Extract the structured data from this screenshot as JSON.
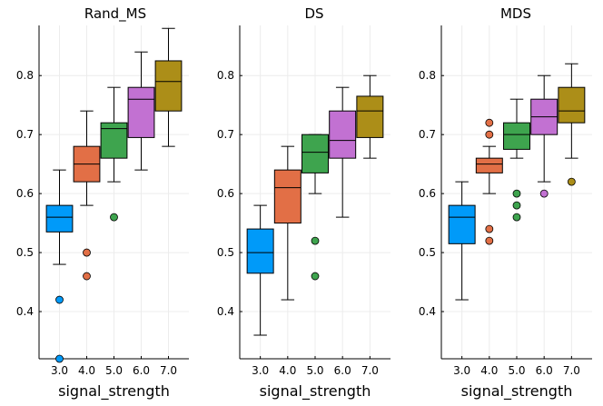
{
  "chart_data": [
    {
      "type": "boxplot",
      "title": "Rand_MS",
      "xlabel": "signal_strength",
      "ylabel": "",
      "ylim": [
        0.32,
        0.885
      ],
      "yticks": [
        "0.4",
        "0.5",
        "0.6",
        "0.7",
        "0.8"
      ],
      "grid": true,
      "categories": [
        "3.0",
        "4.0",
        "5.0",
        "6.0",
        "7.0"
      ],
      "boxes": [
        {
          "category": "3.0",
          "whisker_low": 0.48,
          "q1": 0.535,
          "median": 0.56,
          "q3": 0.58,
          "whisker_high": 0.64,
          "outliers": [
            0.42,
            0.32
          ]
        },
        {
          "category": "4.0",
          "whisker_low": 0.58,
          "q1": 0.62,
          "median": 0.65,
          "q3": 0.68,
          "whisker_high": 0.74,
          "outliers": [
            0.5,
            0.46
          ]
        },
        {
          "category": "5.0",
          "whisker_low": 0.62,
          "q1": 0.66,
          "median": 0.71,
          "q3": 0.72,
          "whisker_high": 0.78,
          "outliers": [
            0.56
          ]
        },
        {
          "category": "6.0",
          "whisker_low": 0.64,
          "q1": 0.695,
          "median": 0.76,
          "q3": 0.78,
          "whisker_high": 0.84,
          "outliers": []
        },
        {
          "category": "7.0",
          "whisker_low": 0.68,
          "q1": 0.74,
          "median": 0.79,
          "q3": 0.825,
          "whisker_high": 0.88,
          "outliers": []
        }
      ]
    },
    {
      "type": "boxplot",
      "title": "DS",
      "xlabel": "signal_strength",
      "ylabel": "",
      "ylim": [
        0.32,
        0.885
      ],
      "yticks": [
        "0.4",
        "0.5",
        "0.6",
        "0.7",
        "0.8"
      ],
      "grid": true,
      "categories": [
        "3.0",
        "4.0",
        "5.0",
        "6.0",
        "7.0"
      ],
      "boxes": [
        {
          "category": "3.0",
          "whisker_low": 0.36,
          "q1": 0.465,
          "median": 0.5,
          "q3": 0.54,
          "whisker_high": 0.58,
          "outliers": []
        },
        {
          "category": "4.0",
          "whisker_low": 0.42,
          "q1": 0.55,
          "median": 0.61,
          "q3": 0.64,
          "whisker_high": 0.68,
          "outliers": []
        },
        {
          "category": "5.0",
          "whisker_low": 0.6,
          "q1": 0.635,
          "median": 0.67,
          "q3": 0.7,
          "whisker_high": 0.7,
          "outliers": [
            0.52,
            0.46
          ]
        },
        {
          "category": "6.0",
          "whisker_low": 0.56,
          "q1": 0.66,
          "median": 0.69,
          "q3": 0.74,
          "whisker_high": 0.78,
          "outliers": []
        },
        {
          "category": "7.0",
          "whisker_low": 0.66,
          "q1": 0.695,
          "median": 0.74,
          "q3": 0.765,
          "whisker_high": 0.8,
          "outliers": []
        }
      ]
    },
    {
      "type": "boxplot",
      "title": "MDS",
      "xlabel": "signal_strength",
      "ylabel": "",
      "ylim": [
        0.32,
        0.885
      ],
      "yticks": [
        "0.4",
        "0.5",
        "0.6",
        "0.7",
        "0.8"
      ],
      "grid": true,
      "categories": [
        "3.0",
        "4.0",
        "5.0",
        "6.0",
        "7.0"
      ],
      "boxes": [
        {
          "category": "3.0",
          "whisker_low": 0.42,
          "q1": 0.515,
          "median": 0.56,
          "q3": 0.58,
          "whisker_high": 0.62,
          "outliers": []
        },
        {
          "category": "4.0",
          "whisker_low": 0.6,
          "q1": 0.635,
          "median": 0.65,
          "q3": 0.66,
          "whisker_high": 0.68,
          "outliers": [
            0.72,
            0.7,
            0.54,
            0.52
          ]
        },
        {
          "category": "5.0",
          "whisker_low": 0.66,
          "q1": 0.675,
          "median": 0.7,
          "q3": 0.72,
          "whisker_high": 0.76,
          "outliers": [
            0.6,
            0.58,
            0.56
          ]
        },
        {
          "category": "6.0",
          "whisker_low": 0.62,
          "q1": 0.7,
          "median": 0.73,
          "q3": 0.76,
          "whisker_high": 0.8,
          "outliers": [
            0.6
          ]
        },
        {
          "category": "7.0",
          "whisker_low": 0.66,
          "q1": 0.72,
          "median": 0.74,
          "q3": 0.78,
          "whisker_high": 0.82,
          "outliers": [
            0.62
          ]
        }
      ]
    }
  ],
  "colors": [
    "#009af9",
    "#e26f46",
    "#3ea44e",
    "#c271d2",
    "#ac8e18"
  ]
}
